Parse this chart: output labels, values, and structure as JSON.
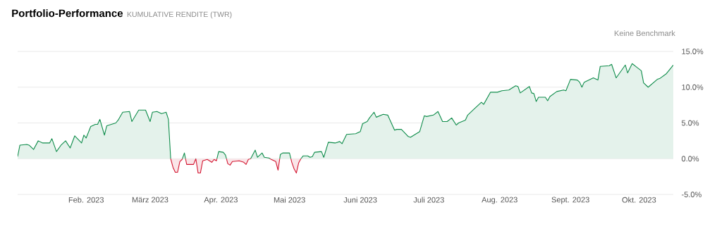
{
  "chart_data": {
    "type": "area",
    "title": "Portfolio-Performance",
    "subtitle": "KUMULATIVE RENDITE (TWR)",
    "annotations": [
      "Keine Benchmark"
    ],
    "x": [
      "2023-01-02",
      "2023-01-03",
      "2023-01-06",
      "2023-01-07",
      "2023-01-09",
      "2023-01-11",
      "2023-01-13",
      "2023-01-16",
      "2023-01-17",
      "2023-01-19",
      "2023-01-21",
      "2023-01-23",
      "2023-01-25",
      "2023-01-27",
      "2023-01-30",
      "2023-01-31",
      "2023-02-01",
      "2023-02-03",
      "2023-02-05",
      "2023-02-06",
      "2023-02-07",
      "2023-02-09",
      "2023-02-10",
      "2023-02-12",
      "2023-02-14",
      "2023-02-15",
      "2023-02-17",
      "2023-02-20",
      "2023-02-21",
      "2023-02-24",
      "2023-02-27",
      "2023-03-01",
      "2023-03-02",
      "2023-03-04",
      "2023-03-06",
      "2023-03-08",
      "2023-03-09",
      "2023-03-10",
      "2023-03-11",
      "2023-03-12",
      "2023-03-13",
      "2023-03-14",
      "2023-03-15",
      "2023-03-16",
      "2023-03-17",
      "2023-03-20",
      "2023-03-21",
      "2023-03-22",
      "2023-03-23",
      "2023-03-24",
      "2023-03-26",
      "2023-03-28",
      "2023-03-29",
      "2023-03-30",
      "2023-03-31",
      "2023-04-02",
      "2023-04-03",
      "2023-04-04",
      "2023-04-05",
      "2023-04-06",
      "2023-04-09",
      "2023-04-11",
      "2023-04-12",
      "2023-04-13",
      "2023-04-14",
      "2023-04-16",
      "2023-04-17",
      "2023-04-19",
      "2023-04-20",
      "2023-04-22",
      "2023-04-23",
      "2023-04-25",
      "2023-04-26",
      "2023-04-27",
      "2023-04-28",
      "2023-05-01",
      "2023-05-02",
      "2023-05-03",
      "2023-05-04",
      "2023-05-05",
      "2023-05-06",
      "2023-05-07",
      "2023-05-09",
      "2023-05-10",
      "2023-05-11",
      "2023-05-12",
      "2023-05-15",
      "2023-05-16",
      "2023-05-18",
      "2023-05-21",
      "2023-05-23",
      "2023-05-24",
      "2023-05-26",
      "2023-05-30",
      "2023-06-01",
      "2023-06-02",
      "2023-06-04",
      "2023-06-05",
      "2023-06-07",
      "2023-06-08",
      "2023-06-11",
      "2023-06-13",
      "2023-06-16",
      "2023-06-17",
      "2023-06-19",
      "2023-06-22",
      "2023-06-23",
      "2023-06-27",
      "2023-06-29",
      "2023-06-30",
      "2023-07-03",
      "2023-07-05",
      "2023-07-07",
      "2023-07-09",
      "2023-07-11",
      "2023-07-13",
      "2023-07-14",
      "2023-07-17",
      "2023-07-18",
      "2023-07-21",
      "2023-07-24",
      "2023-07-25",
      "2023-07-28",
      "2023-07-31",
      "2023-08-02",
      "2023-08-05",
      "2023-08-08",
      "2023-08-09",
      "2023-08-10",
      "2023-08-14",
      "2023-08-15",
      "2023-08-16",
      "2023-08-17",
      "2023-08-18",
      "2023-08-21",
      "2023-08-22",
      "2023-08-23",
      "2023-08-26",
      "2023-08-29",
      "2023-08-30",
      "2023-09-01",
      "2023-09-04",
      "2023-09-05",
      "2023-09-06",
      "2023-09-07",
      "2023-09-11",
      "2023-09-13",
      "2023-09-14",
      "2023-09-18",
      "2023-09-19",
      "2023-09-21",
      "2023-09-25",
      "2023-09-26",
      "2023-09-28",
      "2023-09-30",
      "2023-10-02",
      "2023-10-03",
      "2023-10-05",
      "2023-10-09",
      "2023-10-10",
      "2023-10-13",
      "2023-10-16"
    ],
    "series": [
      {
        "color": "#0e8c4a",
        "values": [
          0.3,
          1.9,
          2.0,
          1.9,
          1.3,
          2.5,
          2.2,
          2.2,
          2.8,
          1.0,
          1.9,
          2.5,
          1.5,
          3.2,
          2.2,
          3.3,
          2.9,
          4.5,
          4.8,
          4.8,
          5.5,
          3.3,
          4.6,
          4.8,
          5.0,
          5.4,
          6.5,
          6.6,
          5.2,
          6.8,
          6.8,
          5.2,
          6.5,
          6.6,
          6.3,
          6.5,
          5.5,
          0,
          -1.2,
          null,
          null,
          null,
          -0.1,
          0.8,
          -0.8,
          -0.8,
          0,
          -2.0,
          null,
          null,
          null,
          null,
          null,
          -0.3,
          1.0,
          0.9,
          0.5,
          -0.7,
          null,
          null,
          null,
          null,
          null,
          -0.1,
          0.0,
          1.2,
          0.2,
          0.8,
          0.2,
          0.1,
          -0.1,
          null,
          -1.6,
          0.6,
          0.8,
          0.8,
          -0.5,
          null,
          null,
          -0.6,
          0,
          0.4,
          0.4,
          0.2,
          0.3,
          0.9,
          1.0,
          0.2,
          2.3,
          2.2,
          2.4,
          2.1,
          3.4,
          3.5,
          3.8,
          4.9,
          5.2,
          5.7,
          6.5,
          5.8,
          6.2,
          6.1,
          4.0,
          4.1,
          4.1,
          3.1,
          3.0,
          3.8,
          6.0,
          5.9,
          6.1,
          6.6,
          5.2,
          5.2,
          5.7,
          4.7,
          5.0,
          5.4,
          6.1,
          7.0,
          7.9,
          7.6,
          9.3,
          9.3,
          9.5,
          9.6,
          10.2,
          10.1,
          9.2,
          10.1,
          9.2,
          9.1,
          8.0,
          8.6,
          8.6,
          8.1,
          8.7,
          9.4,
          9.6,
          9.5,
          11.1,
          11.0,
          10.7,
          10.0,
          10.7,
          11.3,
          11.0,
          12.9,
          13.0,
          13.2,
          11.3,
          13.1,
          12.0,
          13.3,
          12.8,
          12.3,
          10.6,
          10.0,
          11.1,
          11.2,
          11.9,
          13.1
        ]
      },
      {
        "color": "#d3142f",
        "values": [
          null,
          null,
          null,
          null,
          null,
          null,
          null,
          null,
          null,
          null,
          null,
          null,
          null,
          null,
          null,
          null,
          null,
          null,
          null,
          null,
          null,
          null,
          null,
          null,
          null,
          null,
          null,
          null,
          null,
          null,
          null,
          null,
          null,
          null,
          null,
          null,
          5.5,
          0,
          -1.2,
          -1.9,
          -1.9,
          -0.4,
          -0.1,
          0.8,
          -0.8,
          -0.8,
          0,
          -2.0,
          -2.0,
          -0.3,
          -0.1,
          -0.5,
          -0.1,
          -0.3,
          1.0,
          null,
          0.5,
          -0.7,
          -0.9,
          -0.4,
          -0.3,
          -0.5,
          -0.8,
          -0.1,
          0.0,
          1.2,
          null,
          null,
          null,
          0.1,
          -0.1,
          -0.4,
          -1.6,
          0.6,
          null,
          0.8,
          -0.5,
          -1.4,
          -2.0,
          -0.6,
          0,
          0.4,
          null,
          null,
          null,
          null,
          null,
          null,
          null,
          null,
          null,
          null,
          null,
          null,
          null,
          null,
          null,
          null,
          null,
          null,
          null,
          null,
          null,
          null,
          null,
          null,
          null,
          null,
          null,
          null,
          null,
          null,
          null,
          null,
          null,
          null,
          null,
          null,
          null,
          null,
          null,
          null,
          null,
          null,
          null,
          null,
          null,
          null,
          null,
          null,
          null,
          null,
          null,
          null,
          null,
          null,
          null,
          null,
          null,
          null,
          null,
          null,
          null,
          null,
          null,
          null,
          null,
          null,
          null,
          null,
          null,
          null,
          null,
          null,
          null,
          null,
          null,
          null,
          null,
          null,
          null,
          null
        ]
      }
    ],
    "xlim": [
      "2023-01-02",
      "2023-10-16"
    ],
    "xticks": [
      {
        "value": "2023-02-01",
        "label": "Feb. 2023"
      },
      {
        "value": "2023-03-01",
        "label": "März 2023"
      },
      {
        "value": "2023-04-01",
        "label": "Apr. 2023"
      },
      {
        "value": "2023-05-01",
        "label": "Mai 2023"
      },
      {
        "value": "2023-06-01",
        "label": "Juni 2023"
      },
      {
        "value": "2023-07-01",
        "label": "Juli 2023"
      },
      {
        "value": "2023-08-01",
        "label": "Aug. 2023"
      },
      {
        "value": "2023-09-01",
        "label": "Sept. 2023"
      },
      {
        "value": "2023-10-01",
        "label": "Okt. 2023"
      }
    ],
    "ylim": [
      -5,
      15
    ],
    "yticks": [
      {
        "value": -5,
        "label": "-5.0%"
      },
      {
        "value": 0,
        "label": "0.0%"
      },
      {
        "value": 5,
        "label": "5.0%"
      },
      {
        "value": 10,
        "label": "10.0%"
      },
      {
        "value": 15,
        "label": "15.0%"
      }
    ],
    "grid": "y"
  }
}
